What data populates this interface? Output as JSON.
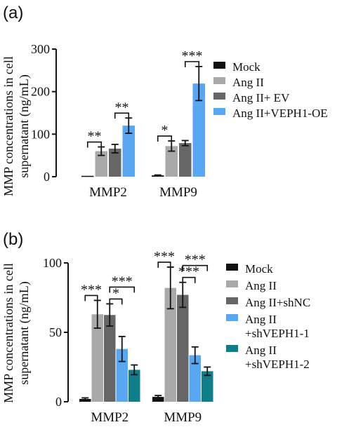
{
  "chart_data": [
    {
      "panel": "(a)",
      "type": "bar",
      "ylabel": "MMP concentrations in cell supernatant (ng/mL)",
      "ylabel_lines": [
        "MMP concentrations in cell",
        "supernatant (ng/mL)"
      ],
      "ylim": [
        0,
        300
      ],
      "yticks": [
        "0",
        "100",
        "200",
        "300"
      ],
      "categories": [
        "MMP2",
        "MMP9"
      ],
      "legend_position": "right",
      "series": [
        {
          "name": "Mock",
          "color": "#111111",
          "values": [
            2,
            3
          ],
          "errors": [
            0,
            1
          ]
        },
        {
          "name": "Ang II",
          "color": "#a9a9a9",
          "values": [
            60,
            72
          ],
          "errors": [
            10,
            12
          ]
        },
        {
          "name": "Ang II+ EV",
          "color": "#666666",
          "values": [
            66,
            79
          ],
          "errors": [
            10,
            6
          ]
        },
        {
          "name": "Ang II+VEPH1-OE",
          "color": "#58a7f3",
          "values": [
            120,
            219
          ],
          "errors": [
            18,
            40
          ]
        }
      ],
      "significance": [
        {
          "category": 0,
          "from": 1,
          "to": 0,
          "label": "**"
        },
        {
          "category": 0,
          "from": 3,
          "to": 2,
          "label": "**"
        },
        {
          "category": 1,
          "from": 1,
          "to": 0,
          "label": "*"
        },
        {
          "category": 1,
          "from": 3,
          "to": 2,
          "label": "***"
        }
      ]
    },
    {
      "panel": "(b)",
      "type": "bar",
      "ylabel": "MMP concentrations in cell supernatant (ng/mL)",
      "ylabel_lines": [
        "MMP concentrations in cell",
        "supernatant (ng/mL)"
      ],
      "ylim": [
        0,
        100
      ],
      "yticks": [
        "0",
        "50",
        "100"
      ],
      "categories": [
        "MMP2",
        "MMP9"
      ],
      "legend_position": "right",
      "series": [
        {
          "name": "Mock",
          "legend_lines": [
            "Mock"
          ],
          "color": "#111111",
          "values": [
            2,
            3.5
          ],
          "errors": [
            0.8,
            1
          ]
        },
        {
          "name": "Ang II",
          "legend_lines": [
            "Ang II"
          ],
          "color": "#a9a9a9",
          "values": [
            63,
            82
          ],
          "errors": [
            10,
            15
          ]
        },
        {
          "name": "Ang II+shNC",
          "legend_lines": [
            "Ang II+shNC"
          ],
          "color": "#666666",
          "values": [
            62.5,
            77
          ],
          "errors": [
            8,
            9
          ]
        },
        {
          "name": "Ang II +shVEPH1-1",
          "legend_lines": [
            "Ang II",
            "+shVEPH1-1"
          ],
          "color": "#58a7f3",
          "values": [
            38,
            33.5
          ],
          "errors": [
            9,
            6
          ]
        },
        {
          "name": "Ang II +shVEPH1-2",
          "legend_lines": [
            "Ang II",
            "+shVEPH1-2"
          ],
          "color": "#0e7e8a",
          "values": [
            23,
            22
          ],
          "errors": [
            3.5,
            3
          ]
        }
      ],
      "significance": [
        {
          "category": 0,
          "from": 0,
          "to": 1,
          "label": "***",
          "level": 0
        },
        {
          "category": 0,
          "from": 2,
          "to": 3,
          "label": "*",
          "level": 0
        },
        {
          "category": 0,
          "from": 2,
          "to": 4,
          "label": "***",
          "level": 1
        },
        {
          "category": 1,
          "from": 0,
          "to": 1,
          "label": "***",
          "level": 0
        },
        {
          "category": 1,
          "from": 2,
          "to": 3,
          "label": "***",
          "level": 0
        },
        {
          "category": 1,
          "from": 2,
          "to": 4,
          "label": "***",
          "level": 1
        }
      ]
    }
  ]
}
